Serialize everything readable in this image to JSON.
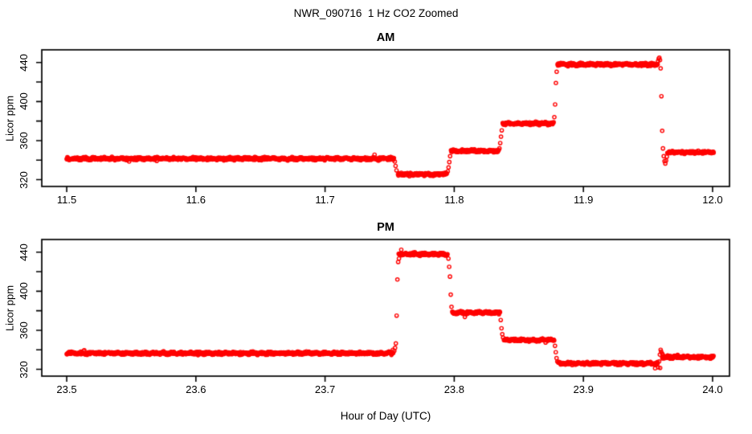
{
  "figure": {
    "title": "NWR_090716  1 Hz CO2 Zoomed",
    "xlabel": "Hour of Day (UTC)",
    "background": "#ffffff",
    "point_color": "#ff0000",
    "axis_color": "#000000"
  },
  "chart_data": [
    {
      "type": "scatter",
      "title": "AM",
      "ylabel": "Licor ppm",
      "marker": "open-circle",
      "marker_color": "#ff0000",
      "grid": false,
      "legend": null,
      "xlim": [
        11.4807,
        12.0131
      ],
      "ylim": [
        313,
        453
      ],
      "x_ticks": [
        11.5,
        11.6,
        11.7,
        11.8,
        11.9,
        12.0
      ],
      "x_tick_labels": [
        "11.5",
        "11.6",
        "11.7",
        "11.8",
        "11.9",
        "12.0"
      ],
      "y_ticks_minor": [
        320,
        340,
        360,
        380,
        400,
        420,
        440
      ],
      "y_ticks": [
        320,
        360,
        400,
        440
      ],
      "y_tick_labels": [
        "320",
        "360",
        "400",
        "440"
      ],
      "segments": [
        {
          "t": [
            11.5,
            11.7535
          ],
          "ppm": 341.5
        },
        {
          "t": [
            11.7565,
            11.7945
          ],
          "ppm": 325.5
        },
        {
          "t": [
            11.7975,
            11.8345
          ],
          "ppm": 349.5
        },
        {
          "t": [
            11.8375,
            11.877
          ],
          "ppm": 377.5
        },
        {
          "t": [
            11.88,
            11.9575
          ],
          "ppm": 438.0
        },
        {
          "t": [
            11.965,
            12.001
          ],
          "ppm": 348.0
        }
      ],
      "transition_points": [
        [
          11.754,
          338.5
        ],
        [
          11.7546,
          334.0
        ],
        [
          11.7553,
          329.5
        ],
        [
          11.795,
          328.5
        ],
        [
          11.7956,
          332.5
        ],
        [
          11.7962,
          338.0
        ],
        [
          11.7968,
          344.0
        ],
        [
          11.835,
          352.0
        ],
        [
          11.8356,
          357.5
        ],
        [
          11.8362,
          364.0
        ],
        [
          11.8368,
          370.5
        ],
        [
          11.8775,
          384.0
        ],
        [
          11.8781,
          397.0
        ],
        [
          11.8787,
          419.0
        ],
        [
          11.8793,
          430.5
        ],
        [
          11.9578,
          441.5
        ],
        [
          11.9583,
          444.0
        ],
        [
          11.9588,
          445.0
        ],
        [
          11.9593,
          442.5
        ],
        [
          11.9598,
          434.0
        ],
        [
          11.9604,
          405.5
        ],
        [
          11.961,
          370.0
        ],
        [
          11.9616,
          352.0
        ],
        [
          11.9622,
          344.0
        ],
        [
          11.9628,
          339.0
        ],
        [
          11.9634,
          336.5
        ],
        [
          11.964,
          339.5
        ],
        [
          11.9646,
          343.5
        ]
      ]
    },
    {
      "type": "scatter",
      "title": "PM",
      "ylabel": "Licor ppm",
      "marker": "open-circle",
      "marker_color": "#ff0000",
      "grid": false,
      "legend": null,
      "xlim": [
        23.4807,
        24.0131
      ],
      "ylim": [
        313,
        453
      ],
      "x_ticks": [
        23.5,
        23.6,
        23.7,
        23.8,
        23.9,
        24.0
      ],
      "x_tick_labels": [
        "23.5",
        "23.6",
        "23.7",
        "23.8",
        "23.9",
        "24.0"
      ],
      "y_ticks_minor": [
        320,
        340,
        360,
        380,
        400,
        420,
        440
      ],
      "y_ticks": [
        320,
        360,
        400,
        440
      ],
      "y_tick_labels": [
        "320",
        "360",
        "400",
        "440"
      ],
      "segments": [
        {
          "t": [
            23.5,
            23.753
          ],
          "ppm": 336.5
        },
        {
          "t": [
            23.757,
            23.795
          ],
          "ppm": 438.0
        },
        {
          "t": [
            23.7985,
            23.8355
          ],
          "ppm": 378.0
        },
        {
          "t": [
            23.8385,
            23.8775
          ],
          "ppm": 350.0
        },
        {
          "t": [
            23.8805,
            23.9575
          ],
          "ppm": 326.0
        },
        {
          "t": [
            23.961,
            24.001
          ],
          "ppm": 332.5
        }
      ],
      "transition_points": [
        [
          23.7536,
          339.0
        ],
        [
          23.7542,
          342.0
        ],
        [
          23.7548,
          346.5
        ],
        [
          23.7554,
          375.0
        ],
        [
          23.756,
          412.0
        ],
        [
          23.7566,
          430.0
        ],
        [
          23.7572,
          433.5
        ],
        [
          23.759,
          442.5
        ],
        [
          23.7955,
          433.5
        ],
        [
          23.7961,
          425.0
        ],
        [
          23.7967,
          415.0
        ],
        [
          23.7973,
          396.5
        ],
        [
          23.7979,
          384.0
        ],
        [
          23.836,
          370.5
        ],
        [
          23.8366,
          362.0
        ],
        [
          23.8372,
          356.0
        ],
        [
          23.8378,
          352.5
        ],
        [
          23.878,
          344.0
        ],
        [
          23.8786,
          337.5
        ],
        [
          23.8792,
          331.5
        ],
        [
          23.8798,
          328.0
        ],
        [
          23.9555,
          321.0
        ],
        [
          23.958,
          322.0
        ],
        [
          23.9586,
          328.0
        ],
        [
          23.9592,
          335.0
        ],
        [
          23.9594,
          321.5
        ],
        [
          23.9598,
          340.0
        ],
        [
          23.9602,
          338.0
        ],
        [
          23.961,
          336.0
        ],
        [
          23.9616,
          334.5
        ]
      ]
    }
  ]
}
